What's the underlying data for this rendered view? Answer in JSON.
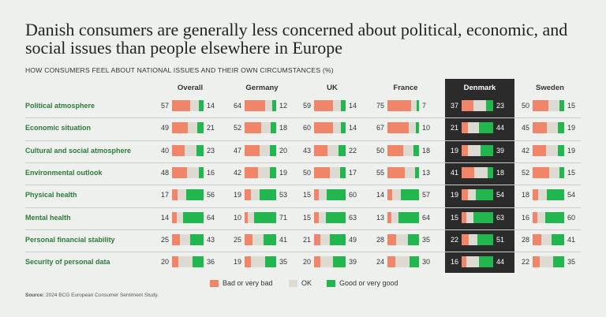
{
  "title": "Danish consumers are generally less concerned about political, economic, and social issues than people elsewhere in Europe",
  "subtitle": "HOW CONSUMERS FEEL ABOUT NATIONAL ISSUES AND THEIR OWN CIRCUMSTANCES (%)",
  "source_label": "Source:",
  "source_text": "2024 BCG European Consumer Sentiment Study.",
  "colors": {
    "bad": "#f0856a",
    "ok": "#dcdad1",
    "good": "#21b74e",
    "label_green": "#2d7a3a",
    "highlight_panel": "#2b2b2b"
  },
  "chart_data": {
    "type": "bar",
    "stacked": true,
    "orientation": "horizontal",
    "highlighted_column": "Denmark",
    "columns": [
      "Overall",
      "Germany",
      "UK",
      "France",
      "Denmark",
      "Sweden"
    ],
    "categories": [
      "Political atmosphere",
      "Economic situation",
      "Cultural and social atmosphere",
      "Environmental outlook",
      "Physical health",
      "Mental health",
      "Personal financial stability",
      "Security of personal data"
    ],
    "legend": [
      "Bad or very bad",
      "OK",
      "Good or very good"
    ],
    "bad": [
      [
        57,
        64,
        59,
        75,
        37,
        50
      ],
      [
        49,
        52,
        60,
        67,
        21,
        45
      ],
      [
        40,
        47,
        43,
        50,
        19,
        42
      ],
      [
        48,
        42,
        50,
        55,
        41,
        52
      ],
      [
        17,
        19,
        15,
        14,
        19,
        18
      ],
      [
        14,
        10,
        15,
        13,
        15,
        16
      ],
      [
        25,
        25,
        21,
        28,
        22,
        28
      ],
      [
        20,
        19,
        20,
        24,
        16,
        22
      ]
    ],
    "good": [
      [
        14,
        12,
        14,
        7,
        23,
        15
      ],
      [
        21,
        18,
        14,
        10,
        44,
        19
      ],
      [
        23,
        20,
        22,
        18,
        39,
        19
      ],
      [
        16,
        19,
        17,
        13,
        18,
        15
      ],
      [
        56,
        53,
        60,
        57,
        54,
        54
      ],
      [
        64,
        71,
        63,
        64,
        63,
        60
      ],
      [
        43,
        41,
        49,
        35,
        51,
        41
      ],
      [
        36,
        35,
        39,
        30,
        44,
        35
      ]
    ]
  }
}
